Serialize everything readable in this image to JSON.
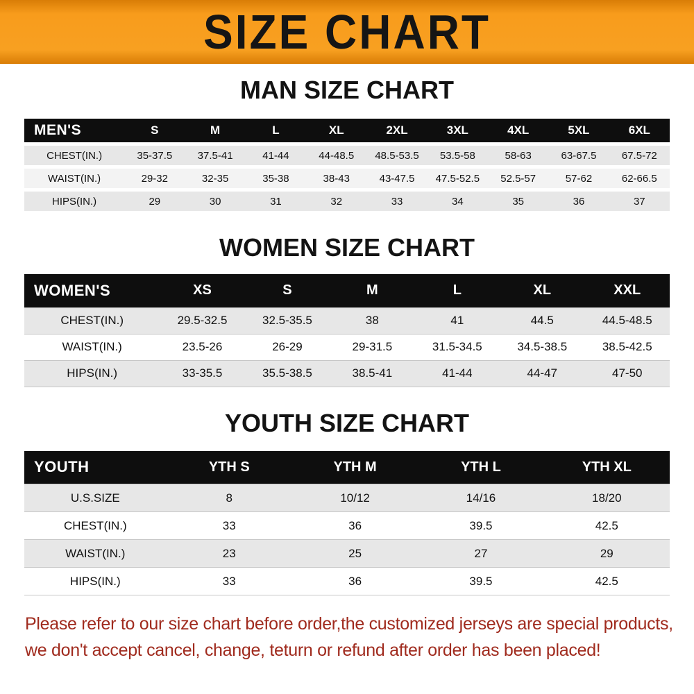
{
  "banner": {
    "title": "SIZE CHART"
  },
  "colors": {
    "banner_orange": "#f89c1c",
    "header_black": "#0e0e0e",
    "row_gray": "#e7e7e7",
    "footer_red": "#a02b1e"
  },
  "sections": [
    {
      "heading": "MAN SIZE CHART",
      "header_label": "MEN'S",
      "columns": [
        "S",
        "M",
        "L",
        "XL",
        "2XL",
        "3XL",
        "4XL",
        "5XL",
        "6XL"
      ],
      "rows": [
        {
          "label": "CHEST(IN.)",
          "values": [
            "35-37.5",
            "37.5-41",
            "41-44",
            "44-48.5",
            "48.5-53.5",
            "53.5-58",
            "58-63",
            "63-67.5",
            "67.5-72"
          ]
        },
        {
          "label": "WAIST(IN.)",
          "values": [
            "29-32",
            "32-35",
            "35-38",
            "38-43",
            "43-47.5",
            "47.5-52.5",
            "52.5-57",
            "57-62",
            "62-66.5"
          ]
        },
        {
          "label": "HIPS(IN.)",
          "values": [
            "29",
            "30",
            "31",
            "32",
            "33",
            "34",
            "35",
            "36",
            "37"
          ]
        }
      ]
    },
    {
      "heading": "WOMEN SIZE CHART",
      "header_label": "WOMEN'S",
      "columns": [
        "XS",
        "S",
        "M",
        "L",
        "XL",
        "XXL"
      ],
      "rows": [
        {
          "label": "CHEST(IN.)",
          "values": [
            "29.5-32.5",
            "32.5-35.5",
            "38",
            "41",
            "44.5",
            "44.5-48.5"
          ]
        },
        {
          "label": "WAIST(IN.)",
          "values": [
            "23.5-26",
            "26-29",
            "29-31.5",
            "31.5-34.5",
            "34.5-38.5",
            "38.5-42.5"
          ]
        },
        {
          "label": "HIPS(IN.)",
          "values": [
            "33-35.5",
            "35.5-38.5",
            "38.5-41",
            "41-44",
            "44-47",
            "47-50"
          ]
        }
      ]
    },
    {
      "heading": "YOUTH SIZE CHART",
      "header_label": "YOUTH",
      "columns": [
        "YTH S",
        "YTH M",
        "YTH L",
        "YTH XL"
      ],
      "rows": [
        {
          "label": "U.S.SIZE",
          "values": [
            "8",
            "10/12",
            "14/16",
            "18/20"
          ]
        },
        {
          "label": "CHEST(IN.)",
          "values": [
            "33",
            "36",
            "39.5",
            "42.5"
          ]
        },
        {
          "label": "WAIST(IN.)",
          "values": [
            "23",
            "25",
            "27",
            "29"
          ]
        },
        {
          "label": "HIPS(IN.)",
          "values": [
            "33",
            "36",
            "39.5",
            "42.5"
          ]
        }
      ]
    }
  ],
  "footer": {
    "line1": "Please refer to our size chart before order,the customized jerseys are special products,",
    "line2": "we don't accept cancel, change, teturn or refund after order has been placed!"
  }
}
